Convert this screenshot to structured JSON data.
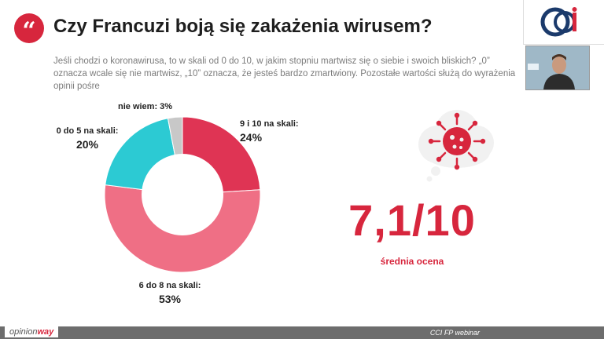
{
  "slide": {
    "quote_mark": "“",
    "title": "Czy Francuzi boją się zakażenia wirusem?",
    "question": "Jeśli chodzi o koronawirusa, to w skali od 0 do 10, w jakim stopniu martwisz się o siebie i swoich bliskich? „0” oznacza wcale się nie martwisz, „10” oznacza, że jesteś bardzo zmartwiony. Pozostałe wartości służą do wyrażenia opinii pośre",
    "score": "7,1/10",
    "score_label": "średnia ocena",
    "footer_text": "CCI FP webinar",
    "brand_prefix": "opinion",
    "brand_suffix": "way"
  },
  "colors": {
    "accent": "#d7263d",
    "slice_9_10": "#df3454",
    "slice_6_8": "#ef6f85",
    "slice_0_5": "#2ccad3",
    "slice_dk": "#c8c8c8"
  },
  "icons": [
    "quote-icon",
    "cci-logo-icon",
    "virus-cloud-icon"
  ],
  "chart_data": {
    "type": "pie",
    "style": "donut",
    "title": "",
    "categories": [
      "9 i 10 na skali:",
      "6 do 8 na skali:",
      "0 do 5 na skali:",
      "nie wiem: 3%"
    ],
    "values": [
      24,
      53,
      20,
      3
    ],
    "labels": {
      "s0_name": "9 i 10 na skali:",
      "s0_pct": "24%",
      "s1_name": "6 do 8 na skali:",
      "s1_pct": "53%",
      "s2_name": "0 do 5 na skali:",
      "s2_pct": "20%",
      "s3_name": "nie wiem: 3%"
    },
    "unit": "%"
  }
}
